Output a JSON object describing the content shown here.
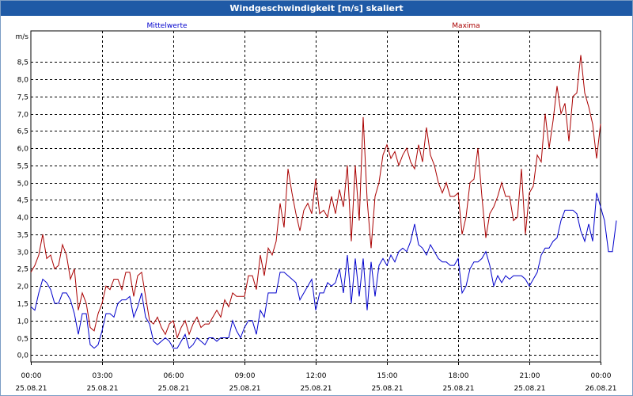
{
  "window": {
    "title": "Windgeschwindigkeit [m/s] skaliert"
  },
  "chart_data": {
    "type": "line",
    "title": "Windgeschwindigkeit [m/s] skaliert",
    "xlabel": "",
    "ylabel": "m/s",
    "ylim": [
      -0.2,
      9.4
    ],
    "xlim": [
      "2021-08-25 00:00",
      "2021-08-26 00:00"
    ],
    "x_interval_minutes": 10,
    "y_ticks": [
      "0,0",
      "0,5",
      "1,0",
      "1,5",
      "2,0",
      "2,5",
      "3,0",
      "3,5",
      "4,0",
      "4,5",
      "5,0",
      "5,5",
      "6,0",
      "6,5",
      "7,0",
      "7,5",
      "8,0",
      "8,5"
    ],
    "y_tick_values": [
      0,
      0.5,
      1,
      1.5,
      2,
      2.5,
      3,
      3.5,
      4,
      4.5,
      5,
      5.5,
      6,
      6.5,
      7,
      7.5,
      8,
      8.5
    ],
    "x_ticks": [
      {
        "time": "00:00",
        "date": "25.08.21"
      },
      {
        "time": "03:00",
        "date": "25.08.21"
      },
      {
        "time": "06:00",
        "date": "25.08.21"
      },
      {
        "time": "09:00",
        "date": "25.08.21"
      },
      {
        "time": "12:00",
        "date": "25.08.21"
      },
      {
        "time": "15:00",
        "date": "25.08.21"
      },
      {
        "time": "18:00",
        "date": "25.08.21"
      },
      {
        "time": "21:00",
        "date": "25.08.21"
      },
      {
        "time": "00:00",
        "date": "26.08.21"
      }
    ],
    "grid": true,
    "legend": [
      "Mittelwerte",
      "Maxima"
    ],
    "series": [
      {
        "name": "Mittelwerte",
        "color": "#0000cc",
        "values": [
          1.4,
          1.3,
          1.8,
          2.2,
          2.1,
          1.9,
          1.5,
          1.5,
          1.8,
          1.8,
          1.6,
          1.2,
          0.6,
          1.2,
          1.2,
          0.3,
          0.2,
          0.3,
          0.7,
          1.2,
          1.2,
          1.1,
          1.5,
          1.6,
          1.6,
          1.7,
          1.1,
          1.4,
          1.8,
          1.1,
          0.9,
          0.4,
          0.3,
          0.4,
          0.5,
          0.4,
          0.2,
          0.2,
          0.4,
          0.6,
          0.2,
          0.3,
          0.5,
          0.4,
          0.3,
          0.5,
          0.5,
          0.4,
          0.5,
          0.5,
          0.5,
          1.0,
          0.7,
          0.5,
          0.8,
          1.0,
          1.0,
          0.6,
          1.3,
          1.1,
          1.8,
          1.8,
          1.8,
          2.4,
          2.4,
          2.3,
          2.2,
          2.1,
          1.6,
          1.8,
          2.0,
          2.2,
          1.3,
          1.8,
          1.8,
          2.1,
          2.0,
          2.1,
          2.5,
          1.8,
          2.9,
          1.5,
          2.8,
          1.7,
          2.8,
          1.3,
          2.7,
          1.7,
          2.6,
          2.8,
          2.6,
          2.9,
          2.7,
          3.0,
          3.1,
          3.0,
          3.3,
          3.8,
          3.2,
          3.1,
          2.9,
          3.2,
          3.0,
          2.8,
          2.7,
          2.7,
          2.6,
          2.6,
          2.8,
          1.8,
          2.0,
          2.5,
          2.7,
          2.7,
          2.8,
          3.0,
          2.6,
          2.0,
          2.3,
          2.1,
          2.3,
          2.2,
          2.3,
          2.3,
          2.3,
          2.2,
          2.0,
          2.2,
          2.4,
          2.9,
          3.1,
          3.1,
          3.3,
          3.4,
          3.9,
          4.2,
          4.2,
          4.2,
          4.1,
          3.6,
          3.3,
          3.8,
          3.3,
          4.7,
          4.3,
          3.9,
          3.0,
          3.0,
          3.9
        ]
      },
      {
        "name": "Maxima",
        "color": "#aa0000",
        "values": [
          2.4,
          2.6,
          2.9,
          3.5,
          2.8,
          2.9,
          2.5,
          2.6,
          3.2,
          2.9,
          2.2,
          2.5,
          1.3,
          1.8,
          1.5,
          0.8,
          0.7,
          1.2,
          1.5,
          2.0,
          1.9,
          2.2,
          2.2,
          1.9,
          2.4,
          2.4,
          1.7,
          2.3,
          2.4,
          1.7,
          1.0,
          0.9,
          1.1,
          0.8,
          0.6,
          0.9,
          1.0,
          0.5,
          0.8,
          1.0,
          0.6,
          0.9,
          1.1,
          0.8,
          0.9,
          0.9,
          1.1,
          1.3,
          1.1,
          1.6,
          1.4,
          1.8,
          1.7,
          1.7,
          1.7,
          2.3,
          2.3,
          1.9,
          2.9,
          2.3,
          3.1,
          2.9,
          3.3,
          4.4,
          3.7,
          5.4,
          4.7,
          4.1,
          3.6,
          4.2,
          4.4,
          4.1,
          5.1,
          4.1,
          4.2,
          4.0,
          4.6,
          4.1,
          4.8,
          4.3,
          5.5,
          3.3,
          5.5,
          3.9,
          6.9,
          4.5,
          3.1,
          4.6,
          5.0,
          5.8,
          6.1,
          5.7,
          5.9,
          5.5,
          5.8,
          6.0,
          5.6,
          5.4,
          6.1,
          5.6,
          6.6,
          5.8,
          5.5,
          5.0,
          4.7,
          5.0,
          4.6,
          4.6,
          4.7,
          3.5,
          4.0,
          5.0,
          5.1,
          6.0,
          4.6,
          3.4,
          4.1,
          4.3,
          4.6,
          5.0,
          4.6,
          4.6,
          3.9,
          4.0,
          5.4,
          3.5,
          4.7,
          4.9,
          5.8,
          5.6,
          7.0,
          6.0,
          6.8,
          7.8,
          7.0,
          7.3,
          6.2,
          7.5,
          7.6,
          8.7,
          7.6,
          7.2,
          6.7,
          5.7,
          6.7
        ]
      }
    ]
  }
}
